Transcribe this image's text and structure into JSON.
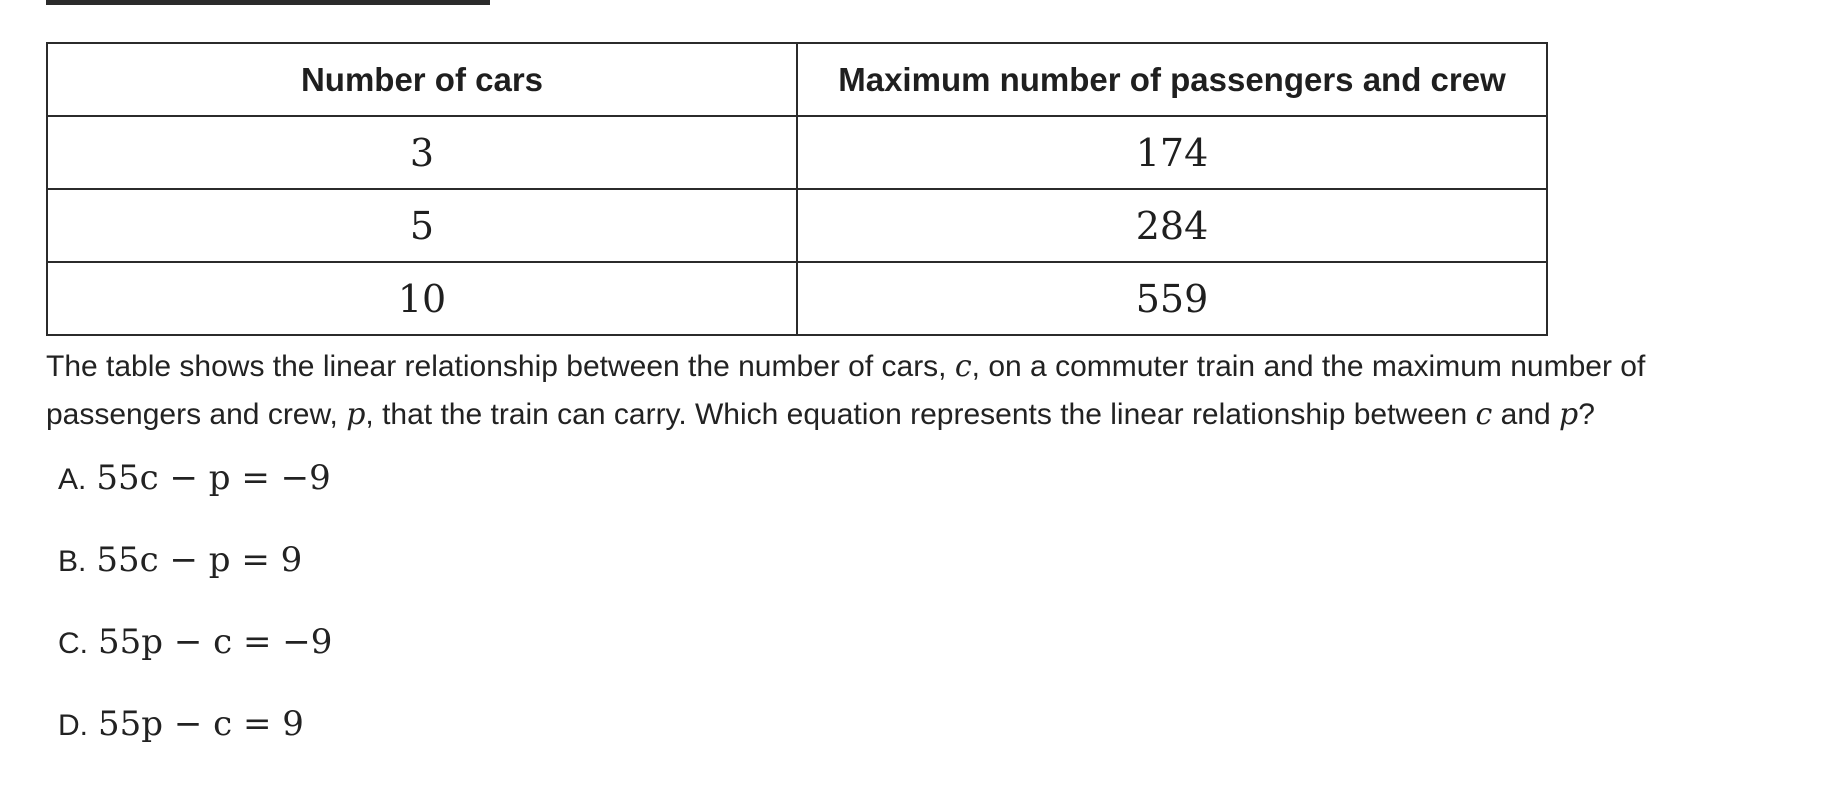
{
  "table": {
    "headers": [
      "Number of cars",
      "Maximum number of passengers and crew"
    ],
    "rows": [
      [
        "3",
        "174"
      ],
      [
        "5",
        "284"
      ],
      [
        "10",
        "559"
      ]
    ]
  },
  "question": {
    "part1": "The table shows the linear relationship between the number of cars,",
    "var_c": "c",
    "part2": ", on a commuter train and the maximum number of passengers and crew,",
    "var_p": "p",
    "part3": ", that the train can carry. Which equation represents the linear relationship between",
    "var_c2": "c",
    "part4": "and",
    "var_p2": "p",
    "part5": "?"
  },
  "choices": [
    {
      "letter": "A.",
      "equation": "55c − p = −9"
    },
    {
      "letter": "B.",
      "equation": "55c − p = 9"
    },
    {
      "letter": "C.",
      "equation": "55p − c = −9"
    },
    {
      "letter": "D.",
      "equation": "55p − c = 9"
    }
  ]
}
